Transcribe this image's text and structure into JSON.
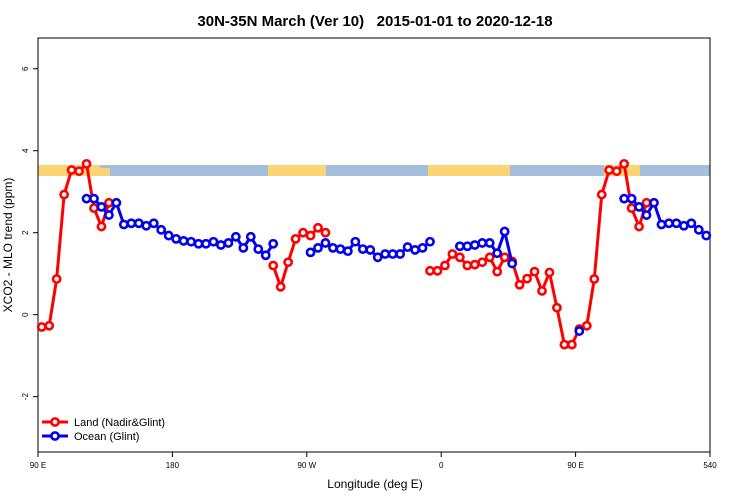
{
  "chart_data": {
    "type": "line",
    "title": "30N-35N March (Ver 10)   2015-01-01 to 2020-12-18",
    "x_label": "Longitude (deg E)",
    "y_label": "XCO2 - MLO trend (ppm)",
    "xlim": [
      90,
      540
    ],
    "xticks": [
      {
        "value": 90,
        "label": "90 E"
      },
      180,
      {
        "value": 270,
        "label": "90 W"
      },
      {
        "value": 360,
        "label": "0"
      },
      {
        "value": 450,
        "label": "90 E"
      },
      540
    ],
    "ylim": [
      -3.35,
      6.75
    ],
    "yticks": [
      -2,
      0,
      2,
      4,
      6
    ],
    "legend": "bottom-left",
    "x": [
      92.5,
      97.5,
      102.5,
      107.5,
      112.5,
      117.5,
      122.5,
      127.5,
      132.5,
      137.5,
      142.5,
      147.5,
      152.5,
      157.5,
      162.5,
      167.5,
      172.5,
      177.5,
      182.5,
      187.5,
      192.5,
      197.5,
      202.5,
      207.5,
      212.5,
      217.5,
      222.5,
      227.5,
      232.5,
      237.5,
      242.5,
      247.5,
      252.5,
      257.5,
      262.5,
      267.5,
      272.5,
      277.5,
      282.5,
      287.5,
      292.5,
      297.5,
      302.5,
      307.5,
      312.5,
      317.5,
      322.5,
      327.5,
      332.5,
      337.5,
      342.5,
      347.5,
      352.5,
      357.5,
      362.5,
      367.5,
      372.5,
      377.5,
      382.5,
      387.5,
      392.5,
      397.5,
      402.5,
      407.5,
      412.5,
      417.5,
      422.5,
      427.5,
      432.5,
      437.5,
      442.5,
      447.5,
      452.5,
      457.5,
      462.5,
      467.5,
      472.5,
      477.5,
      482.5,
      487.5,
      492.5,
      497.5,
      502.5,
      507.5,
      512.5,
      517.5,
      522.5,
      527.5,
      532.5,
      537.5
    ],
    "series": [
      {
        "name": "Land (Nadir&Glint)",
        "color": "#ff0000",
        "values": [
          -0.3,
          -0.27,
          0.87,
          2.93,
          3.53,
          3.5,
          3.68,
          2.6,
          2.15,
          2.73,
          null,
          null,
          null,
          null,
          null,
          null,
          null,
          null,
          null,
          null,
          null,
          null,
          null,
          null,
          null,
          null,
          null,
          null,
          null,
          null,
          null,
          1.2,
          0.68,
          1.28,
          1.85,
          2.0,
          1.93,
          2.12,
          2.0,
          null,
          null,
          null,
          null,
          null,
          null,
          null,
          null,
          null,
          null,
          null,
          null,
          null,
          1.07,
          1.07,
          1.2,
          1.48,
          1.4,
          1.2,
          1.22,
          1.28,
          1.4,
          1.05,
          1.4,
          1.3,
          0.73,
          0.88,
          1.05,
          0.58,
          1.03,
          0.17,
          -0.73,
          -0.73,
          -0.35,
          -0.27,
          0.87,
          2.93,
          3.53,
          3.5,
          3.68,
          2.6,
          2.15,
          2.73,
          null,
          null,
          null,
          null,
          null,
          null,
          null,
          null
        ]
      },
      {
        "name": "Ocean (Glint)",
        "color": "#0000ee",
        "values": [
          null,
          null,
          null,
          null,
          null,
          null,
          2.83,
          2.83,
          2.63,
          2.43,
          2.73,
          2.2,
          2.23,
          2.23,
          2.17,
          2.23,
          2.07,
          1.93,
          1.85,
          1.8,
          1.78,
          1.73,
          1.73,
          1.78,
          1.7,
          1.75,
          1.9,
          1.63,
          1.9,
          1.6,
          1.45,
          1.73,
          null,
          null,
          null,
          null,
          1.52,
          1.63,
          1.75,
          1.63,
          1.6,
          1.55,
          1.78,
          1.6,
          1.58,
          1.4,
          1.48,
          1.48,
          1.48,
          1.65,
          1.58,
          1.63,
          1.78,
          null,
          null,
          null,
          1.67,
          1.67,
          1.7,
          1.75,
          1.75,
          1.5,
          2.03,
          1.25,
          null,
          null,
          null,
          null,
          null,
          null,
          null,
          null,
          -0.4,
          null,
          null,
          null,
          null,
          null,
          2.83,
          2.83,
          2.63,
          2.43,
          2.73,
          2.2,
          2.23,
          2.23,
          2.17,
          2.23,
          2.07,
          1.93
        ]
      }
    ]
  }
}
